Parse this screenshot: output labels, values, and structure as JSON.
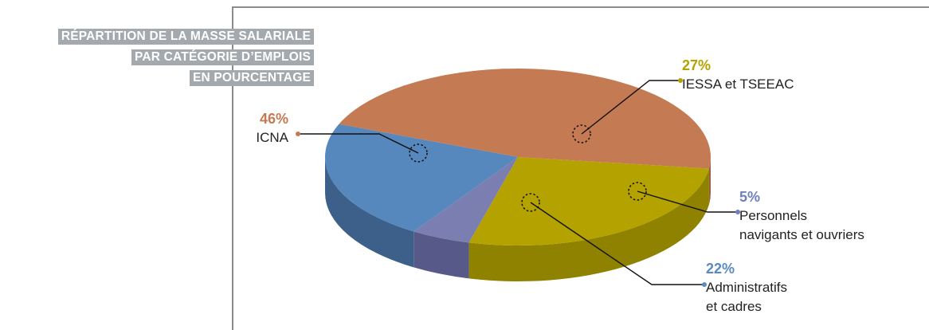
{
  "title_lines": [
    "RÉPARTITION DE LA MASSE SALARIALE",
    "PAR CATÉGORIE D’EMPLOIS",
    "EN POURCENTAGE"
  ],
  "chart_data": {
    "type": "pie",
    "title": "RÉPARTITION DE LA MASSE SALARIALE PAR CATÉGORIE D’EMPLOIS EN POURCENTAGE",
    "slices": [
      {
        "pct_label": "27%",
        "value": 27,
        "label_lines": [
          "IESSA et TSEEAC"
        ],
        "color": "#b3a200",
        "side_color": "#8f8200",
        "pct_color": "#b3a200"
      },
      {
        "pct_label": "5%",
        "value": 5,
        "label_lines": [
          "Personnels",
          "navigants et ouvriers"
        ],
        "color": "#7b7eb0",
        "side_color": "#575a88",
        "pct_color": "#6f7fbf"
      },
      {
        "pct_label": "22%",
        "value": 22,
        "label_lines": [
          "Administratifs",
          "et cadres"
        ],
        "color": "#5687bd",
        "side_color": "#3c6089",
        "pct_color": "#5a8ac2"
      },
      {
        "pct_label": "46%",
        "value": 46,
        "label_lines": [
          "ICNA"
        ],
        "color": "#c47a52",
        "side_color": "#9d5e3c",
        "pct_color": "#c47a52"
      }
    ]
  }
}
